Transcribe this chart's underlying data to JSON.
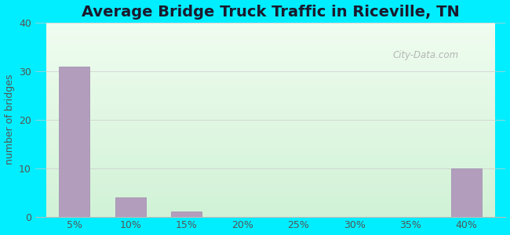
{
  "title": "Average Bridge Truck Traffic in Riceville, TN",
  "xlabel": "",
  "ylabel": "number of bridges",
  "categories": [
    "5%",
    "10%",
    "15%",
    "20%",
    "25%",
    "30%",
    "35%",
    "40%"
  ],
  "values": [
    31,
    4,
    1,
    0,
    0,
    0,
    0,
    10
  ],
  "bar_color": "#b39dbd",
  "bar_edge_color": "#9e89ad",
  "ylim": [
    0,
    40
  ],
  "yticks": [
    0,
    10,
    20,
    30,
    40
  ],
  "bg_outer_color": "#00eeff",
  "title_fontsize": 14,
  "title_color": "#1a1a2e",
  "tick_label_color": "#555555",
  "ylabel_color": "#555555",
  "watermark_text": "City-Data.com",
  "watermark_color": "#aaaaaa"
}
